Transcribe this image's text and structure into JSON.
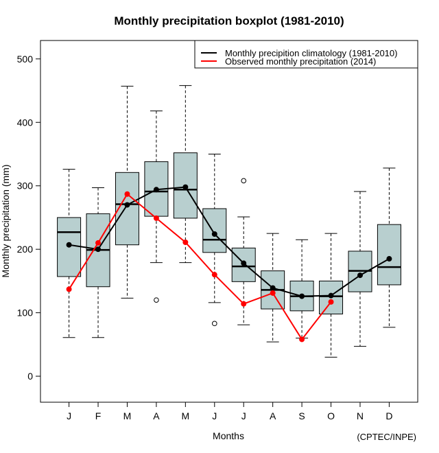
{
  "chart_data": {
    "type": "boxplot",
    "title": "Monthly precipitation boxplot (1981-2010)",
    "xlabel": "Months",
    "ylabel": "Monthly precipitation (mm)",
    "credit": "(CPTEC/INPE)",
    "categories": [
      "J",
      "F",
      "M",
      "A",
      "M",
      "J",
      "J",
      "A",
      "S",
      "O",
      "N",
      "D"
    ],
    "ylim": [
      -41,
      529
    ],
    "yticks": [
      0,
      100,
      200,
      300,
      400,
      500
    ],
    "grid": false,
    "legend": {
      "position": "top-right",
      "entries": [
        {
          "label": "Monthly precipition climatology (1981-2010)",
          "color": "#000000"
        },
        {
          "label": "Observed monthly precipitation (2014)",
          "color": "#ff0000"
        }
      ]
    },
    "box_color": "#b8cfcf",
    "boxes": [
      {
        "month": "J",
        "lower": 61,
        "q1": 157,
        "median": 227,
        "q3": 250,
        "upper": 326,
        "outliers": []
      },
      {
        "month": "F",
        "lower": 61,
        "q1": 141,
        "median": 199,
        "q3": 256,
        "upper": 297,
        "outliers": []
      },
      {
        "month": "M",
        "lower": 123,
        "q1": 207,
        "median": 271,
        "q3": 321,
        "upper": 457,
        "outliers": []
      },
      {
        "month": "A",
        "lower": 179,
        "q1": 252,
        "median": 291,
        "q3": 338,
        "upper": 418,
        "outliers": [
          120
        ]
      },
      {
        "month": "M",
        "lower": 179,
        "q1": 249,
        "median": 294,
        "q3": 352,
        "upper": 458,
        "outliers": []
      },
      {
        "month": "J",
        "lower": 116,
        "q1": 195,
        "median": 215,
        "q3": 264,
        "upper": 350,
        "outliers": [
          83
        ]
      },
      {
        "month": "J",
        "lower": 81,
        "q1": 149,
        "median": 173,
        "q3": 202,
        "upper": 251,
        "outliers": [
          308
        ]
      },
      {
        "month": "A",
        "lower": 54,
        "q1": 106,
        "median": 136,
        "q3": 166,
        "upper": 225,
        "outliers": []
      },
      {
        "month": "S",
        "lower": 60,
        "q1": 103,
        "median": 126,
        "q3": 150,
        "upper": 215,
        "outliers": []
      },
      {
        "month": "O",
        "lower": 30,
        "q1": 98,
        "median": 126,
        "q3": 150,
        "upper": 225,
        "outliers": []
      },
      {
        "month": "N",
        "lower": 47,
        "q1": 133,
        "median": 166,
        "q3": 197,
        "upper": 291,
        "outliers": []
      },
      {
        "month": "D",
        "lower": 77,
        "q1": 144,
        "median": 172,
        "q3": 239,
        "upper": 328,
        "outliers": []
      }
    ],
    "series": [
      {
        "name": "Monthly precipition climatology (1981-2010)",
        "color": "#000000",
        "values": [
          207,
          200,
          270,
          294,
          298,
          224,
          178,
          139,
          126,
          127,
          159,
          185
        ]
      },
      {
        "name": "Observed monthly precipitation (2014)",
        "color": "#ff0000",
        "values": [
          137,
          210,
          287,
          249,
          211,
          160,
          114,
          131,
          58,
          117,
          null,
          null
        ]
      }
    ]
  }
}
